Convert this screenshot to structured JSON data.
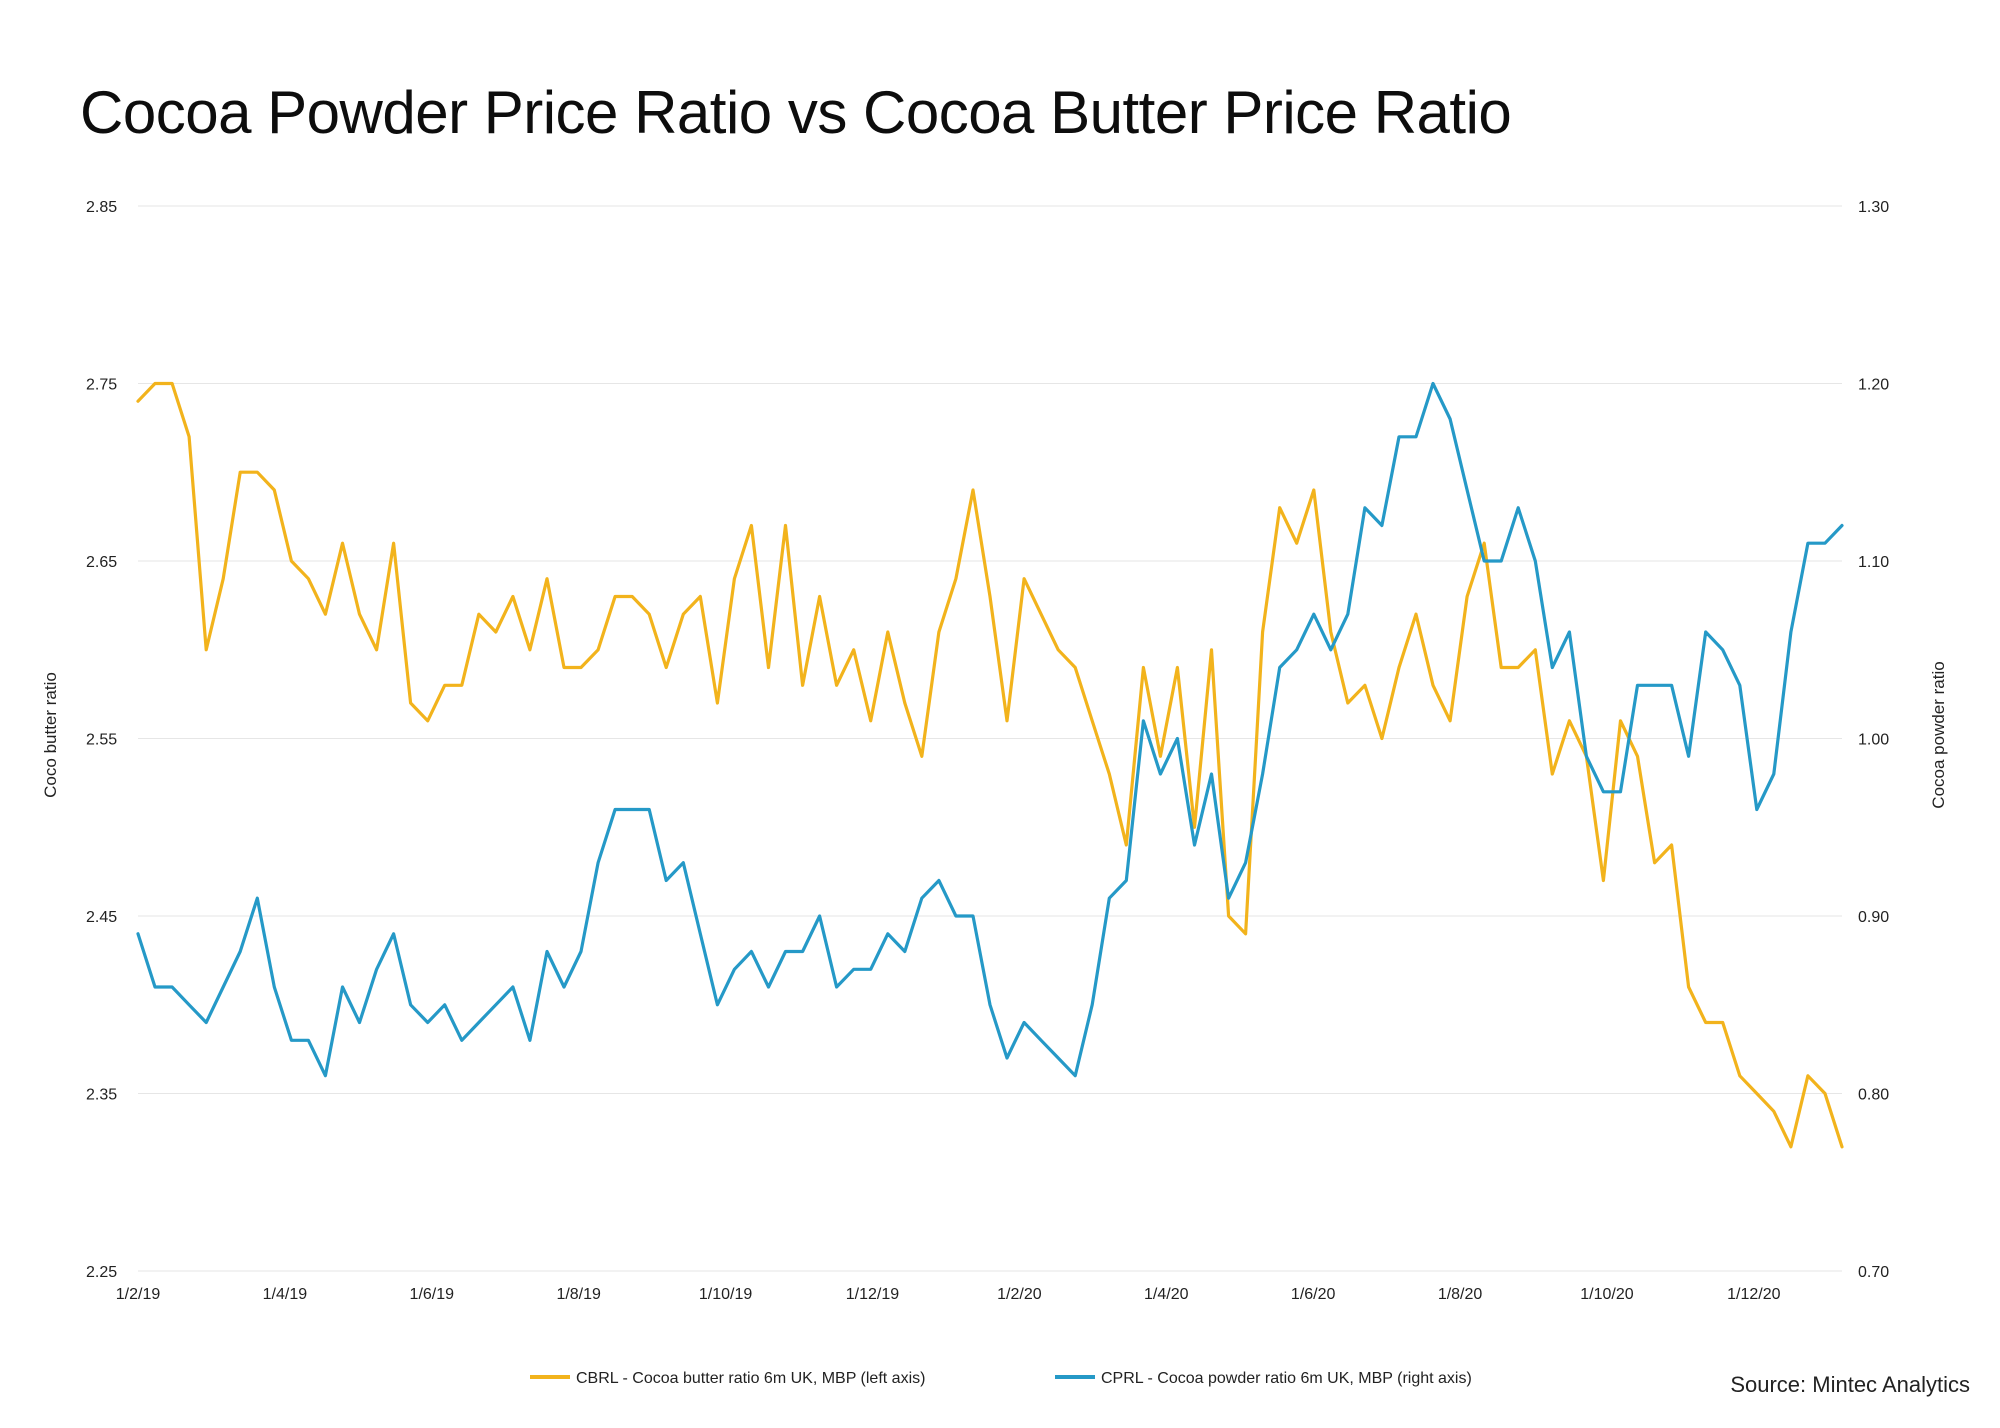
{
  "source": "Source: Mintec Analytics",
  "colors": {
    "butter": "#F2B31C",
    "powder": "#2599C7",
    "grid": "#E6E6E6"
  },
  "chart_data": {
    "type": "line",
    "title": "Cocoa Powder Price Ratio vs Cocoa Butter Price Ratio",
    "x_ticks": [
      "1/2/19",
      "1/4/19",
      "1/6/19",
      "1/8/19",
      "1/10/19",
      "1/12/19",
      "1/2/20",
      "1/4/20",
      "1/6/20",
      "1/8/20",
      "1/10/20",
      "1/12/20"
    ],
    "left_axis": {
      "label": "Coco butter ratio",
      "ylim": [
        2.25,
        2.85
      ],
      "ticks": [
        "2.85",
        "2.75",
        "2.65",
        "2.55",
        "2.45",
        "2.35",
        "2.25"
      ]
    },
    "right_axis": {
      "label": "Cocoa powder ratio",
      "ylim": [
        0.7,
        1.3
      ],
      "ticks": [
        "1.30",
        "1.20",
        "1.10",
        "1.00",
        "0.90",
        "0.80",
        "0.70"
      ]
    },
    "grid": "horizontal",
    "legend_position": "bottom",
    "series": [
      {
        "name": "CBRL - Cocoa butter ratio 6m UK, MBP (left axis)",
        "axis": "left",
        "values": [
          2.74,
          2.75,
          2.75,
          2.72,
          2.6,
          2.64,
          2.7,
          2.7,
          2.69,
          2.65,
          2.64,
          2.62,
          2.66,
          2.62,
          2.6,
          2.66,
          2.57,
          2.56,
          2.58,
          2.58,
          2.62,
          2.61,
          2.63,
          2.6,
          2.64,
          2.59,
          2.59,
          2.6,
          2.63,
          2.63,
          2.62,
          2.59,
          2.62,
          2.63,
          2.57,
          2.64,
          2.67,
          2.59,
          2.67,
          2.58,
          2.63,
          2.58,
          2.6,
          2.56,
          2.61,
          2.57,
          2.54,
          2.61,
          2.64,
          2.69,
          2.63,
          2.56,
          2.64,
          2.62,
          2.6,
          2.59,
          2.56,
          2.53,
          2.49,
          2.59,
          2.54,
          2.59,
          2.5,
          2.6,
          2.45,
          2.44,
          2.61,
          2.68,
          2.66,
          2.69,
          2.61,
          2.57,
          2.58,
          2.55,
          2.59,
          2.62,
          2.58,
          2.56,
          2.63,
          2.66,
          2.59,
          2.59,
          2.6,
          2.53,
          2.56,
          2.54,
          2.47,
          2.56,
          2.54,
          2.48,
          2.49,
          2.41,
          2.39,
          2.39,
          2.36,
          2.35,
          2.34,
          2.32,
          2.36,
          2.35,
          2.32
        ]
      },
      {
        "name": "CPRL - Cocoa powder ratio 6m UK, MBP (right axis)",
        "axis": "right",
        "values": [
          0.89,
          0.86,
          0.86,
          0.85,
          0.84,
          0.86,
          0.88,
          0.91,
          0.86,
          0.83,
          0.83,
          0.81,
          0.86,
          0.84,
          0.87,
          0.89,
          0.85,
          0.84,
          0.85,
          0.83,
          0.84,
          0.85,
          0.86,
          0.83,
          0.88,
          0.86,
          0.88,
          0.93,
          0.96,
          0.96,
          0.96,
          0.92,
          0.93,
          0.89,
          0.85,
          0.87,
          0.88,
          0.86,
          0.88,
          0.88,
          0.9,
          0.86,
          0.87,
          0.87,
          0.89,
          0.88,
          0.91,
          0.92,
          0.9,
          0.9,
          0.85,
          0.82,
          0.84,
          0.83,
          0.82,
          0.81,
          0.85,
          0.91,
          0.92,
          1.01,
          0.98,
          1.0,
          0.94,
          0.98,
          0.91,
          0.93,
          0.98,
          1.04,
          1.05,
          1.07,
          1.05,
          1.07,
          1.13,
          1.12,
          1.17,
          1.17,
          1.2,
          1.18,
          1.14,
          1.1,
          1.1,
          1.13,
          1.1,
          1.04,
          1.06,
          0.99,
          0.97,
          0.97,
          1.03,
          1.03,
          1.03,
          0.99,
          1.06,
          1.05,
          1.03,
          0.96,
          0.98,
          1.06,
          1.11,
          1.11,
          1.12
        ]
      }
    ]
  }
}
